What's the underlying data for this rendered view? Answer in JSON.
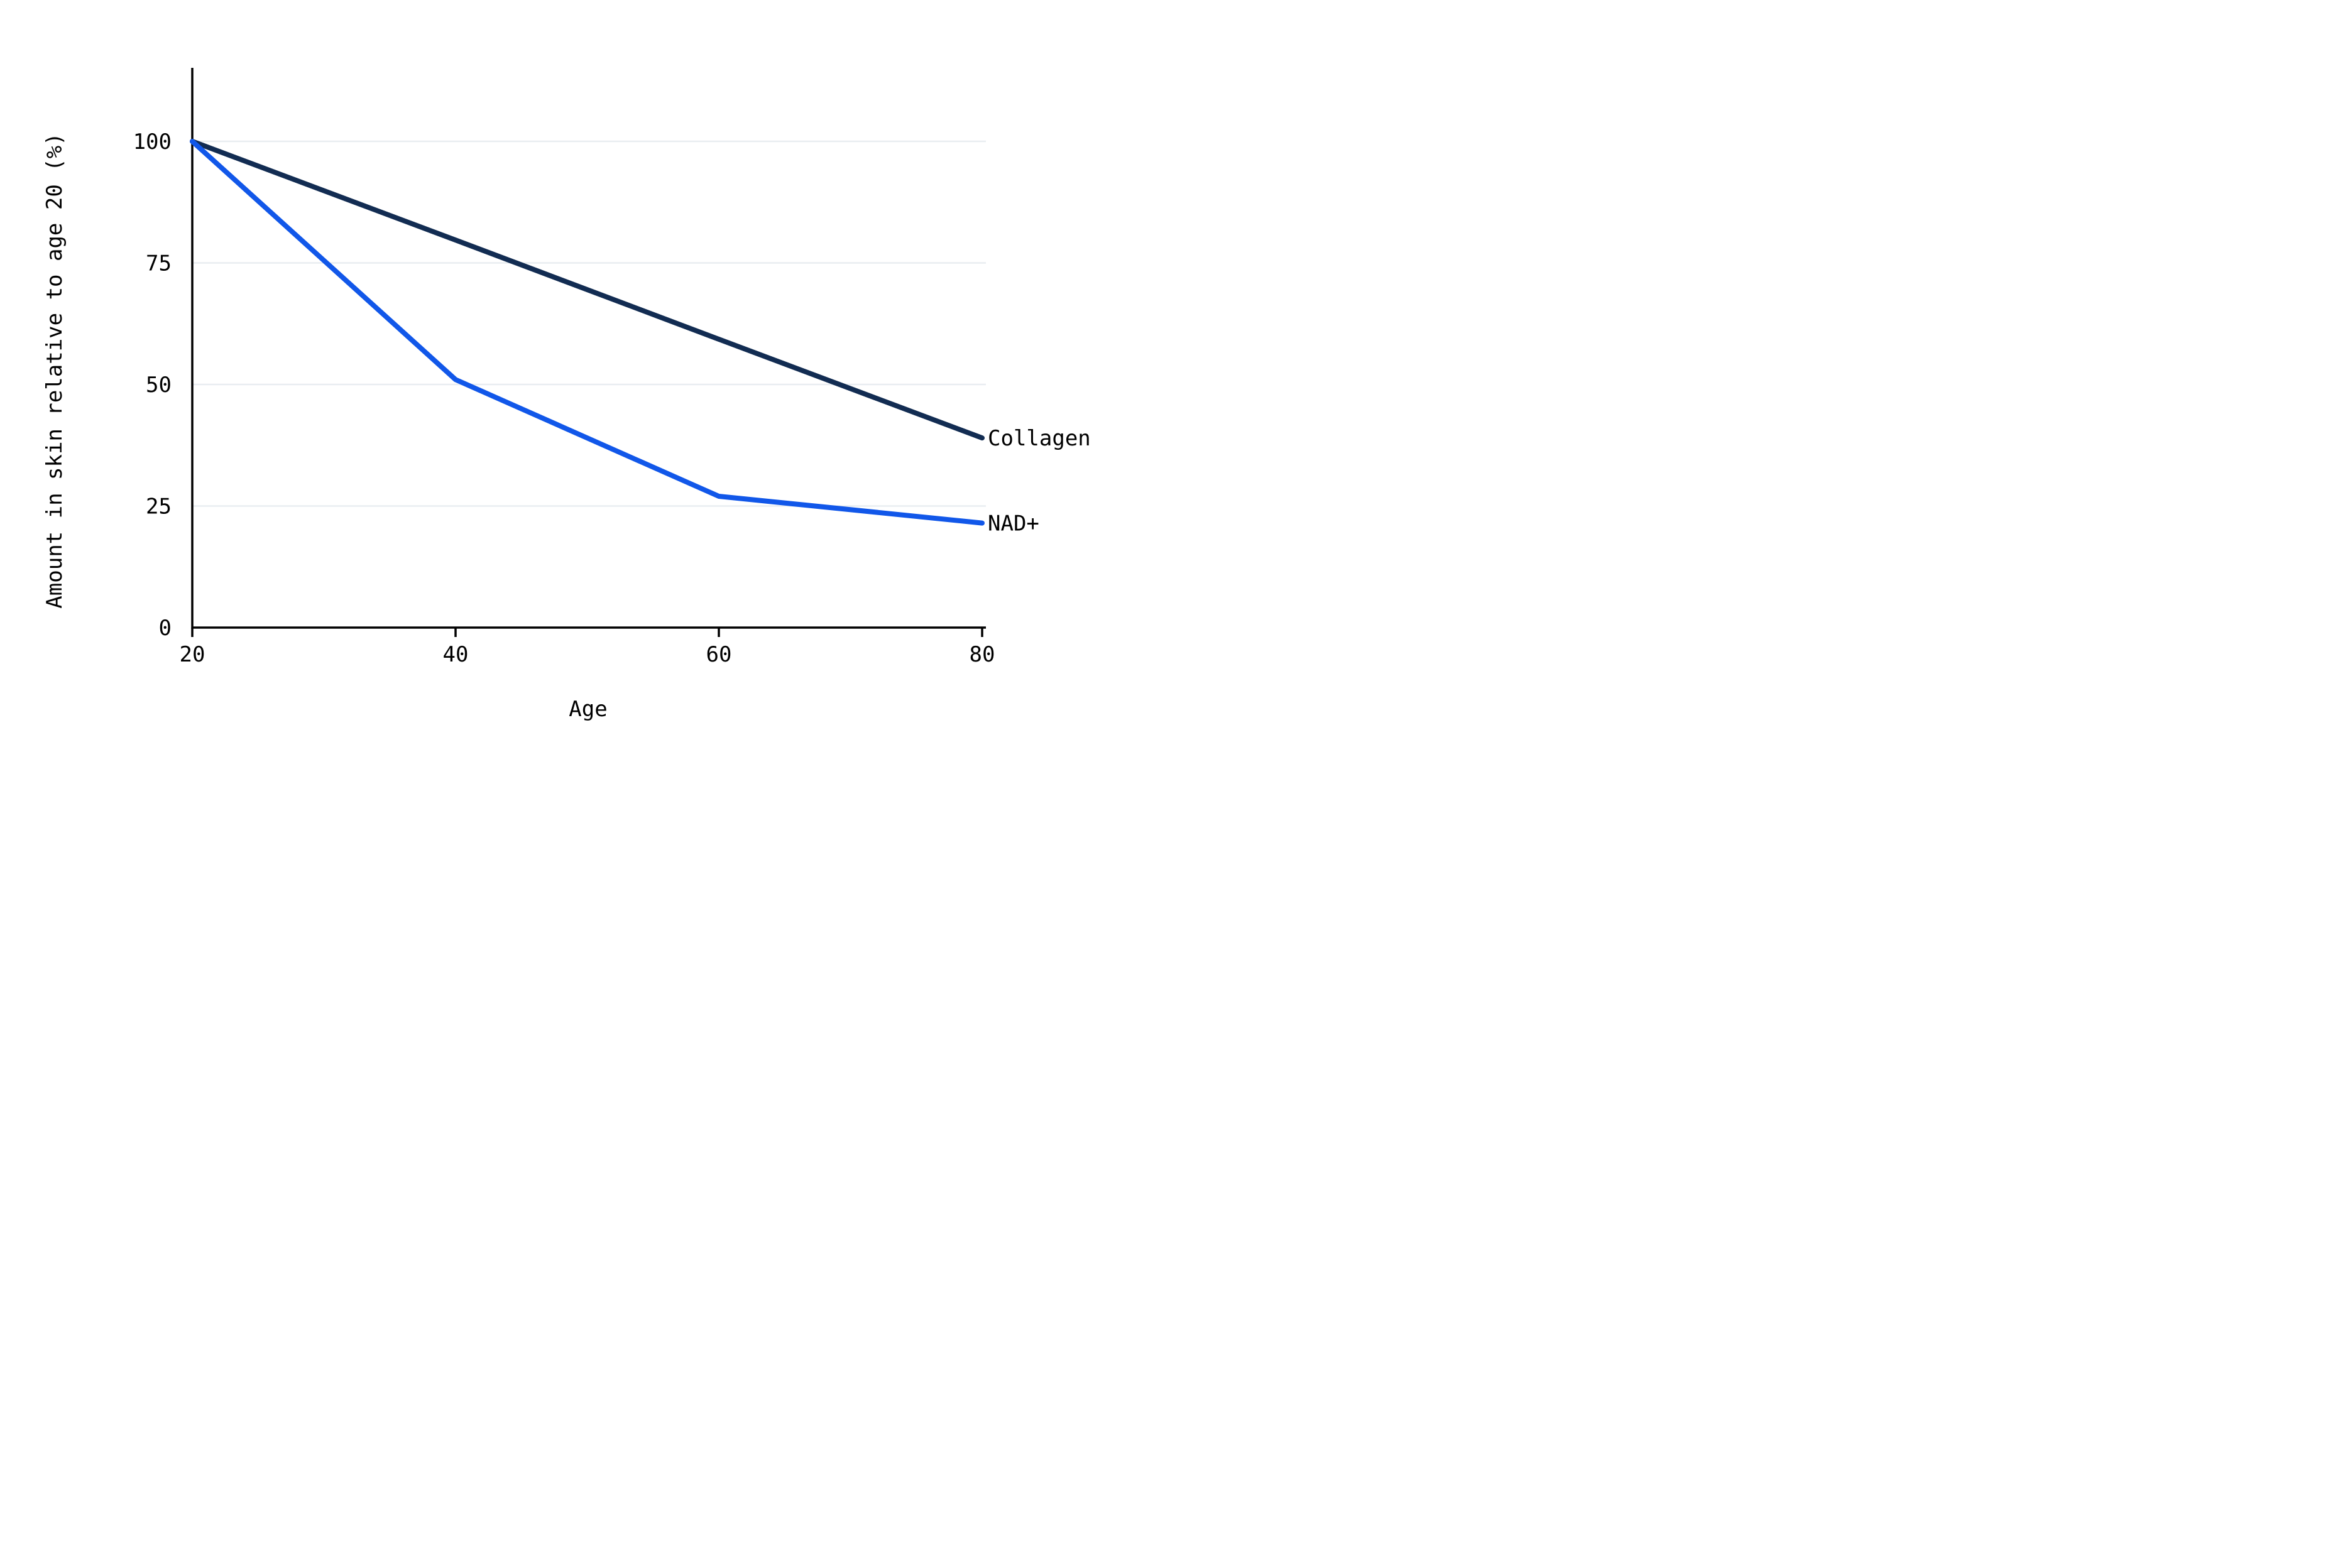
{
  "chart_data": {
    "type": "line",
    "x": [
      20,
      40,
      60,
      80
    ],
    "series": [
      {
        "name": "Collagen",
        "color": "#122c52",
        "values": [
          100,
          79.7,
          59.3,
          39
        ]
      },
      {
        "name": "NAD+",
        "color": "#1157e9",
        "values": [
          100,
          51,
          27,
          21.5
        ]
      }
    ],
    "title": "",
    "xlabel": "Age",
    "ylabel": "Amount in skin relative to age 20 (%)",
    "xlim": [
      20,
      80
    ],
    "ylim": [
      0,
      100
    ],
    "xticks": [
      20,
      40,
      60,
      80
    ],
    "yticks": [
      0,
      25,
      50,
      75,
      100
    ],
    "grid": "horizontal",
    "legend_position": "right-end-labels",
    "colors": {
      "axis": "#000000",
      "gridline": "#e9edf1",
      "background": "#ffffff",
      "tick_text": "#000000"
    }
  }
}
